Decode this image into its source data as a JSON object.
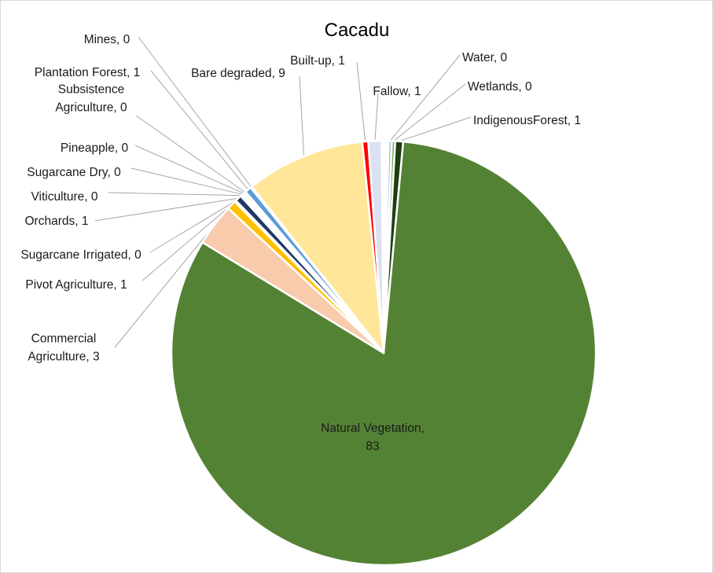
{
  "chart_data": {
    "type": "pie",
    "title": "Cacadu",
    "legend": "none",
    "slices": [
      {
        "name": "Water",
        "value": 0,
        "share": 0.0025,
        "color": "#9dc3e6",
        "label_lines": [
          "Water, 0"
        ]
      },
      {
        "name": "Wetlands",
        "value": 0,
        "share": 0.0025,
        "color": "#70ad47",
        "label_lines": [
          "Wetlands, 0"
        ]
      },
      {
        "name": "IndigenousForest",
        "value": 1,
        "share": 0.006,
        "color": "#1e3d14",
        "label_lines": [
          "IndigenousForest, 1"
        ]
      },
      {
        "name": "Natural Vegetation",
        "value": 83,
        "share": 0.8225,
        "color": "#548235",
        "label_lines": [
          "Natural Vegetation,",
          "83"
        ]
      },
      {
        "name": "Commercial Agriculture",
        "value": 3,
        "share": 0.032,
        "color": "#f8cbad",
        "label_lines": [
          "Commercial",
          "Agriculture, 3"
        ]
      },
      {
        "name": "Pivot  Agriculture",
        "value": 1,
        "share": 0.007,
        "color": "#ffc000",
        "label_lines": [
          "Pivot  Agriculture, 1"
        ]
      },
      {
        "name": "Sugarcane Irrigated",
        "value": 0,
        "share": 0.0012,
        "color": "#c55a11",
        "label_lines": [
          "Sugarcane Irrigated, 0"
        ]
      },
      {
        "name": "Orchards",
        "value": 1,
        "share": 0.005,
        "color": "#203864",
        "label_lines": [
          "Orchards, 1"
        ]
      },
      {
        "name": "Viticulture",
        "value": 0,
        "share": 0.0012,
        "color": "#7030a0",
        "label_lines": [
          "Viticulture, 0"
        ]
      },
      {
        "name": "Sugarcane Dry",
        "value": 0,
        "share": 0.0012,
        "color": "#00b050",
        "label_lines": [
          "Sugarcane Dry, 0"
        ]
      },
      {
        "name": "Pineapple",
        "value": 0,
        "share": 0.0012,
        "color": "#bf9000",
        "label_lines": [
          "Pineapple, 0"
        ]
      },
      {
        "name": "Subsistence Agriculture",
        "value": 0,
        "share": 0.0012,
        "color": "#a5a5a5",
        "label_lines": [
          "Subsistence",
          "Agriculture, 0"
        ]
      },
      {
        "name": "Plantation Forest",
        "value": 1,
        "share": 0.005,
        "color": "#5b9bd5",
        "label_lines": [
          "Plantation Forest, 1"
        ]
      },
      {
        "name": "Mines",
        "value": 0,
        "share": 0.0012,
        "color": "#7f7f7f",
        "label_lines": [
          "Mines, 0"
        ]
      },
      {
        "name": "Bare degraded",
        "value": 9,
        "share": 0.0905,
        "color": "#ffe699",
        "label_lines": [
          "Bare degraded, 9"
        ]
      },
      {
        "name": "Built-up",
        "value": 1,
        "share": 0.0045,
        "color": "#ff0000",
        "label_lines": [
          "Built-up, 1"
        ]
      },
      {
        "name": "Fallow",
        "value": 1,
        "share": 0.01,
        "color": "#d9e1f2",
        "label_lines": [
          "Fallow, 1"
        ]
      }
    ]
  }
}
